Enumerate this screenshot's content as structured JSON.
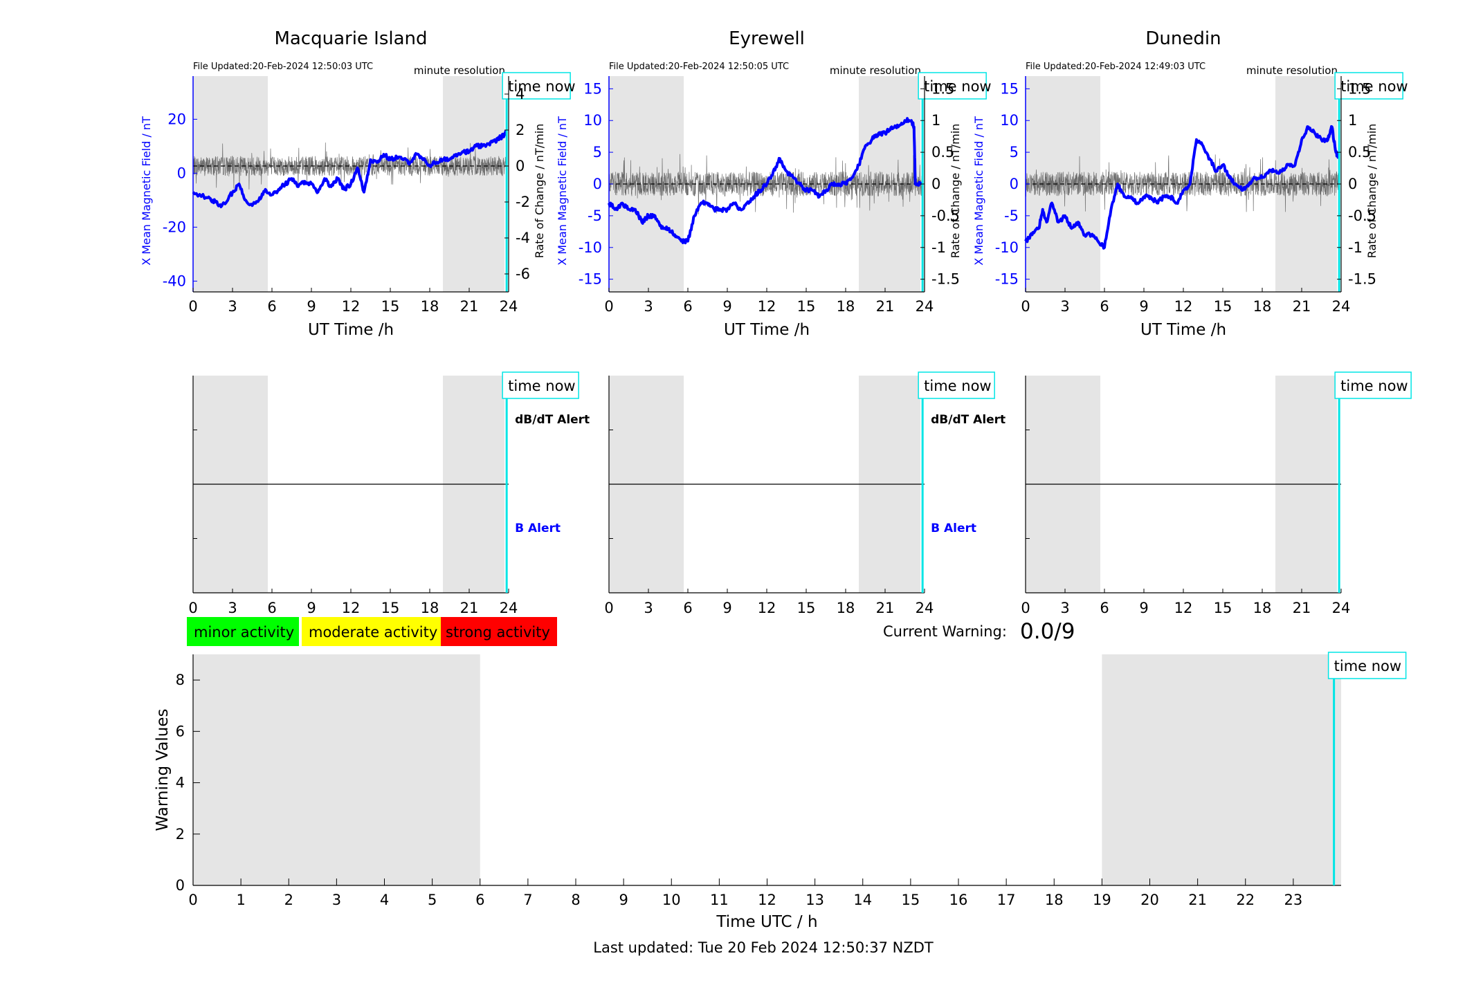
{
  "page": {
    "last_updated": "Last updated: Tue 20 Feb 2024 12:50:37 NZDT",
    "current_warning_label": "Current Warning:",
    "current_warning_value": "0.0/9"
  },
  "common": {
    "resolution": "minute resolution",
    "time_now": "time now",
    "x_axis_label": "UT Time /h",
    "y_left_label": "X Mean Magnetic Field / nT",
    "y_right_label": "Rate of Change / nT/min",
    "dbdt_alert": "dB/dT Alert",
    "b_alert": "B Alert"
  },
  "legend": {
    "items": [
      {
        "label": "minor activity",
        "color": "#00ff00"
      },
      {
        "label": "moderate activity",
        "color": "#ffff00"
      },
      {
        "label": "strong activity",
        "color": "#ff0000"
      }
    ]
  },
  "colors": {
    "field": "#0000ff",
    "rate": "#555555",
    "night_shade": "#e5e5e5",
    "time_now": "#00e5e5"
  },
  "stations": [
    {
      "name": "Macquarie Island",
      "file_updated": "File Updated:20-Feb-2024 12:50:03 UTC",
      "show_alert_labels": true
    },
    {
      "name": "Eyrewell",
      "file_updated": "File Updated:20-Feb-2024 12:50:05 UTC",
      "show_alert_labels": true
    },
    {
      "name": "Dunedin",
      "file_updated": "File Updated:20-Feb-2024 12:49:03 UTC",
      "show_alert_labels": false
    }
  ],
  "chart_data": [
    {
      "type": "line",
      "title": "Macquarie Island",
      "xlabel": "UT Time /h",
      "ylabel": "X Mean Magnetic Field / nT",
      "y2label": "Rate of Change / nT/min",
      "xlim": [
        0,
        24
      ],
      "ylim": [
        -44,
        36
      ],
      "y2lim": [
        -7,
        5.0
      ],
      "x_ticks": [
        0,
        3,
        6,
        9,
        12,
        15,
        18,
        21,
        24
      ],
      "y_ticks": [
        -40,
        -20,
        0,
        20
      ],
      "y2_ticks": [
        -6,
        -4,
        -2,
        0,
        2,
        4
      ],
      "shaded_ranges": [
        [
          0,
          6
        ],
        [
          19,
          24
        ]
      ],
      "time_now": 23.85,
      "series": [
        {
          "name": "X Mean Magnetic Field / nT",
          "axis": "left",
          "x": [
            0,
            1,
            1.5,
            2,
            2.5,
            3,
            3.5,
            4,
            4.5,
            5,
            5.5,
            6,
            6.5,
            7,
            7.5,
            8,
            8.5,
            9,
            9.5,
            10,
            10.5,
            11,
            11.5,
            12,
            12.5,
            13,
            13.5,
            14,
            14.5,
            15,
            15.5,
            16,
            16.5,
            17,
            17.5,
            18,
            18.5,
            19,
            19.5,
            20,
            20.5,
            21,
            21.5,
            22,
            22.5,
            23,
            23.3,
            23.6,
            23.8
          ],
          "y": [
            -7,
            -9,
            -10,
            -12,
            -11,
            -7,
            -4,
            -10,
            -12,
            -10,
            -6,
            -8,
            -6,
            -4,
            -2,
            -5,
            -3,
            -4,
            -7,
            -2,
            -5,
            -2,
            -6,
            -4,
            2,
            -7,
            5,
            4,
            7,
            5,
            6,
            5,
            4,
            7,
            5,
            3,
            4,
            5,
            5,
            7,
            8,
            8,
            10,
            10,
            11,
            12,
            13,
            14,
            15
          ]
        },
        {
          "name": "Rate of Change / nT/min",
          "axis": "right",
          "noise_amplitude": 1.0
        }
      ]
    },
    {
      "type": "line",
      "title": "Eyrewell",
      "xlabel": "UT Time /h",
      "ylabel": "X Mean Magnetic Field / nT",
      "y2label": "Rate of Change / nT/min",
      "xlim": [
        0,
        24
      ],
      "ylim": [
        -17,
        17
      ],
      "y2lim": [
        -1.7,
        1.7
      ],
      "x_ticks": [
        0,
        3,
        6,
        9,
        12,
        15,
        18,
        21,
        24
      ],
      "y_ticks": [
        -15,
        -10,
        -5,
        0,
        5,
        10,
        15
      ],
      "y2_ticks": [
        -1.5,
        -1,
        -0.5,
        0,
        0.5,
        1,
        1.5
      ],
      "shaded_ranges": [
        [
          0,
          6
        ],
        [
          19,
          24
        ]
      ],
      "time_now": 23.85,
      "series": [
        {
          "name": "X Mean Magnetic Field / nT",
          "axis": "left",
          "x": [
            0,
            0.5,
            1,
            1.5,
            2,
            2.5,
            3,
            3.5,
            4,
            4.5,
            5,
            5.5,
            6,
            6.5,
            7,
            7.5,
            8,
            8.5,
            9,
            9.5,
            10,
            10.5,
            11,
            11.5,
            12,
            12.5,
            13,
            13.5,
            14,
            14.5,
            15,
            15.5,
            16,
            16.5,
            17,
            17.5,
            18,
            18.5,
            19,
            19.5,
            20,
            20.5,
            21,
            21.5,
            22,
            22.5,
            23,
            23.2,
            23.3,
            23.8
          ],
          "y": [
            -3,
            -4,
            -3,
            -4,
            -4,
            -6,
            -5,
            -5,
            -7,
            -7,
            -8,
            -9,
            -9,
            -5,
            -3,
            -3,
            -4,
            -4,
            -4,
            -3,
            -4,
            -3,
            -2,
            -1,
            0,
            2,
            4,
            2,
            1,
            0,
            -1,
            -1,
            -2,
            -1,
            0,
            0,
            0,
            1,
            3,
            6,
            7,
            8,
            8,
            9,
            9,
            10,
            10,
            9,
            0,
            0
          ]
        },
        {
          "name": "Rate of Change / nT/min",
          "axis": "right",
          "noise_amplitude": 0.35
        }
      ]
    },
    {
      "type": "line",
      "title": "Dunedin",
      "xlabel": "UT Time /h",
      "ylabel": "X Mean Magnetic Field / nT",
      "y2label": "Rate of Change / nT/min",
      "xlim": [
        0,
        24
      ],
      "ylim": [
        -17,
        17
      ],
      "y2lim": [
        -1.7,
        1.7
      ],
      "x_ticks": [
        0,
        3,
        6,
        9,
        12,
        15,
        18,
        21,
        24
      ],
      "y_ticks": [
        -15,
        -10,
        -5,
        0,
        5,
        10,
        15
      ],
      "y2_ticks": [
        -1.5,
        -1,
        -0.5,
        0,
        0.5,
        1,
        1.5
      ],
      "shaded_ranges": [
        [
          0,
          6
        ],
        [
          19,
          24
        ]
      ],
      "time_now": 23.85,
      "series": [
        {
          "name": "X Mean Magnetic Field / nT",
          "axis": "left",
          "x": [
            0,
            0.5,
            1,
            1.3,
            1.6,
            2,
            2.5,
            3,
            3.5,
            4,
            4.5,
            5,
            5.5,
            6,
            6.5,
            7,
            7.5,
            8,
            8.5,
            9,
            9.5,
            10,
            10.5,
            11,
            11.5,
            12,
            12.5,
            13,
            13.5,
            14,
            14.5,
            15,
            15.5,
            16,
            16.5,
            17,
            17.5,
            18,
            18.5,
            19,
            19.5,
            20,
            20.5,
            21,
            21.5,
            22,
            22.5,
            23,
            23.3,
            23.6,
            23.8
          ],
          "y": [
            -9,
            -8,
            -7,
            -4,
            -6,
            -3,
            -6,
            -5,
            -7,
            -6,
            -8,
            -8,
            -9,
            -10,
            -4,
            0,
            -2,
            -2,
            -3,
            -2,
            -2,
            -3,
            -2,
            -2,
            -3,
            -1,
            0,
            7,
            6,
            4,
            2,
            3,
            1,
            0,
            -1,
            0,
            1,
            1,
            2,
            2,
            2,
            3,
            3,
            7,
            9,
            8,
            7,
            7,
            9,
            5,
            4
          ]
        },
        {
          "name": "Rate of Change / nT/min",
          "axis": "right",
          "noise_amplitude": 0.35
        }
      ]
    },
    {
      "type": "line",
      "title": "",
      "xlabel": "Time UTC / h",
      "ylabel": "Warning Values",
      "xlim": [
        0,
        24
      ],
      "ylim": [
        0,
        9
      ],
      "x_ticks": [
        0,
        1,
        2,
        3,
        4,
        5,
        6,
        7,
        8,
        9,
        10,
        11,
        12,
        13,
        14,
        15,
        16,
        17,
        18,
        19,
        20,
        21,
        22,
        23
      ],
      "y_ticks": [
        0,
        2,
        4,
        6,
        8
      ],
      "shaded_ranges": [
        [
          0,
          6
        ],
        [
          19,
          24
        ]
      ],
      "time_now": 23.85,
      "series": []
    }
  ]
}
